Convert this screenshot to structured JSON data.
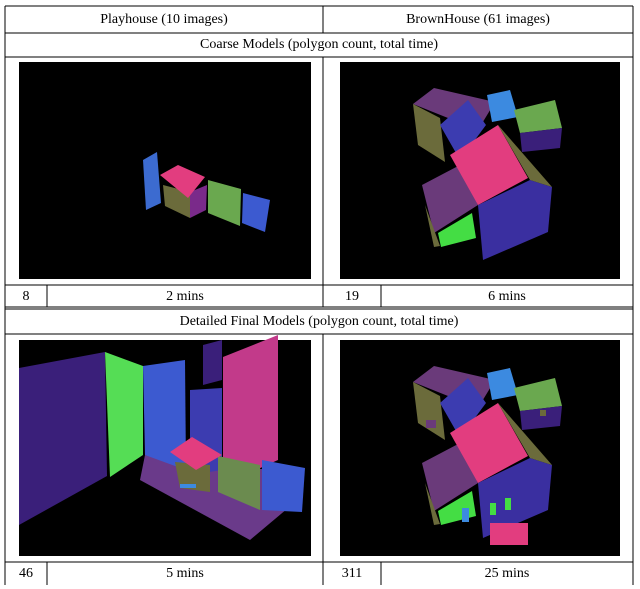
{
  "table": {
    "header": [
      "Playhouse (10 images)",
      "BrownHouse (61 images)"
    ],
    "sections": [
      {
        "title": "Coarse Models (polygon count, total time)",
        "rows": [
          [
            8,
            "2 mins"
          ],
          [
            19,
            "6 mins"
          ]
        ]
      },
      {
        "title": "Detailed Final Models (polygon count, total time)",
        "rows": [
          [
            46,
            "5 mins"
          ],
          [
            311,
            "25 mins"
          ]
        ]
      }
    ]
  }
}
